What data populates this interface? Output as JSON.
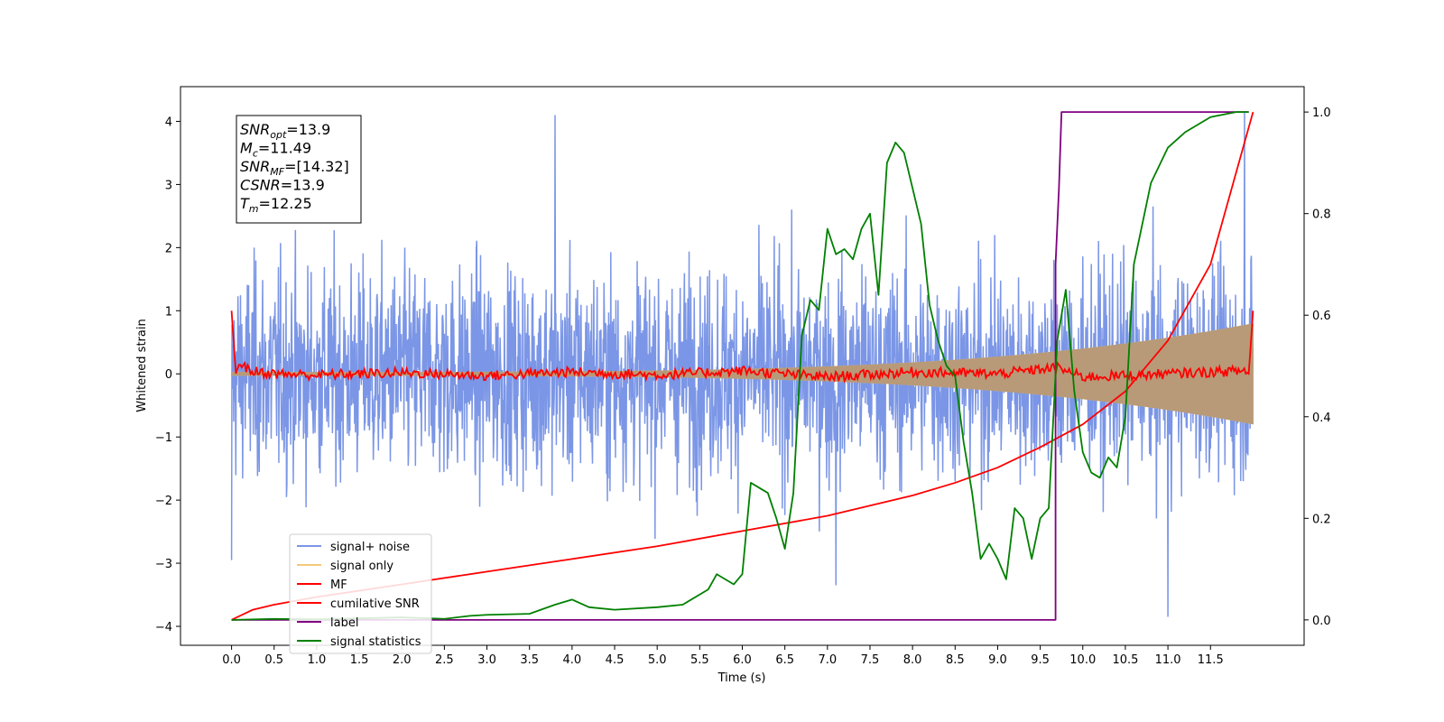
{
  "chart_data": {
    "type": "line",
    "title": "",
    "xlabel": "Time (s)",
    "ylabel": "Whitened strain",
    "xlim": [
      -0.6,
      12.6
    ],
    "ylim_left": [
      -4.3,
      4.55
    ],
    "ylim_right": [
      -0.05,
      1.05
    ],
    "x_ticks": [
      "0.0",
      "0.5",
      "1.0",
      "1.5",
      "2.0",
      "2.5",
      "3.0",
      "3.5",
      "4.0",
      "4.5",
      "5.0",
      "5.5",
      "6.0",
      "6.5",
      "7.0",
      "7.5",
      "8.0",
      "8.5",
      "9.0",
      "9.5",
      "10.0",
      "10.5",
      "11.0",
      "11.5"
    ],
    "y_ticks_left": [
      "4",
      "3",
      "2",
      "1",
      "0",
      "−1",
      "−2",
      "−3",
      "−4"
    ],
    "y_ticks_right": [
      "1.0",
      "0.8",
      "0.6",
      "0.4",
      "0.2",
      "0.0"
    ],
    "legend_position": "lower-left",
    "annotation": {
      "lines": [
        {
          "main": "SNR",
          "sub": "opt",
          "rest": "=13.9"
        },
        {
          "main": "M",
          "sub": "c",
          "rest": "=11.49"
        },
        {
          "main": "SNR",
          "sub": "MF",
          "rest": "=[14.32]"
        },
        {
          "main": "CSNR",
          "sub": "",
          "rest": "=13.9"
        },
        {
          "main": "T",
          "sub": "m",
          "rest": "=12.25"
        }
      ]
    },
    "series": [
      {
        "name": "signal+ noise",
        "color": "#7b96e6",
        "axis": "left",
        "kind": "noise-band",
        "x_range": [
          0.0,
          12.0
        ],
        "envelope": 1.1,
        "notable_peaks": [
          [
            0.0,
            -2.95
          ],
          [
            3.8,
            4.1
          ],
          [
            11.9,
            4.15
          ],
          [
            11.0,
            -3.85
          ],
          [
            7.1,
            -3.35
          ]
        ]
      },
      {
        "name": "signal only",
        "color": "#f5c97a",
        "axis": "left",
        "kind": "chirp",
        "x_range": [
          0.0,
          12.0
        ],
        "amplitude_start": 0.03,
        "amplitude_end": 0.8
      },
      {
        "name": "MF",
        "color": "#ff0000",
        "axis": "left",
        "x": [
          0.0,
          0.05,
          0.1,
          0.2,
          0.5,
          1.0,
          2.0,
          3.0,
          4.0,
          5.0,
          6.0,
          7.0,
          8.0,
          9.0,
          9.7,
          10.0,
          11.0,
          11.9,
          11.95,
          12.0
        ],
        "values": [
          1.0,
          0.0,
          0.2,
          0.05,
          0.0,
          -0.02,
          0.02,
          -0.03,
          0.03,
          -0.02,
          0.05,
          -0.05,
          0.03,
          0.0,
          0.1,
          -0.05,
          0.0,
          0.05,
          0.0,
          1.0
        ]
      },
      {
        "name": "cumilative SNR",
        "color": "#ff0000",
        "axis": "right",
        "x": [
          0.0,
          0.25,
          0.5,
          1.0,
          2.0,
          3.0,
          4.0,
          5.0,
          6.0,
          7.0,
          8.0,
          8.5,
          9.0,
          9.5,
          10.0,
          10.5,
          11.0,
          11.5,
          12.0
        ],
        "values": [
          0.0,
          0.02,
          0.03,
          0.045,
          0.07,
          0.095,
          0.12,
          0.145,
          0.175,
          0.205,
          0.245,
          0.27,
          0.3,
          0.34,
          0.385,
          0.45,
          0.55,
          0.7,
          1.0
        ]
      },
      {
        "name": "label",
        "color": "#800080",
        "axis": "right",
        "x": [
          0.0,
          9.68,
          9.68,
          9.72,
          9.75,
          11.95
        ],
        "values": [
          0.0,
          0.0,
          0.7,
          0.85,
          1.0,
          1.0
        ]
      },
      {
        "name": "signal statistics",
        "color": "#008000",
        "axis": "right",
        "x": [
          0.0,
          0.5,
          1.0,
          1.5,
          2.0,
          2.5,
          2.8,
          3.0,
          3.5,
          3.8,
          4.0,
          4.2,
          4.5,
          5.0,
          5.3,
          5.6,
          5.7,
          5.8,
          5.9,
          6.0,
          6.1,
          6.2,
          6.3,
          6.4,
          6.5,
          6.6,
          6.7,
          6.8,
          6.9,
          7.0,
          7.1,
          7.2,
          7.3,
          7.4,
          7.5,
          7.6,
          7.7,
          7.8,
          7.9,
          8.0,
          8.1,
          8.2,
          8.3,
          8.4,
          8.5,
          8.6,
          8.7,
          8.8,
          8.9,
          9.0,
          9.1,
          9.2,
          9.3,
          9.4,
          9.5,
          9.6,
          9.7,
          9.8,
          9.9,
          10.0,
          10.1,
          10.2,
          10.3,
          10.4,
          10.5,
          10.6,
          10.8,
          11.0,
          11.2,
          11.5,
          11.8,
          11.95
        ],
        "values": [
          0.0,
          0.002,
          0.001,
          0.003,
          0.005,
          0.002,
          0.008,
          0.01,
          0.012,
          0.03,
          0.04,
          0.025,
          0.02,
          0.025,
          0.03,
          0.06,
          0.09,
          0.08,
          0.07,
          0.09,
          0.27,
          0.26,
          0.25,
          0.2,
          0.14,
          0.25,
          0.56,
          0.63,
          0.61,
          0.77,
          0.72,
          0.73,
          0.71,
          0.77,
          0.8,
          0.64,
          0.9,
          0.94,
          0.92,
          0.85,
          0.78,
          0.62,
          0.55,
          0.5,
          0.48,
          0.35,
          0.25,
          0.12,
          0.15,
          0.12,
          0.08,
          0.22,
          0.2,
          0.12,
          0.2,
          0.22,
          0.55,
          0.65,
          0.45,
          0.33,
          0.29,
          0.28,
          0.32,
          0.3,
          0.4,
          0.7,
          0.86,
          0.93,
          0.96,
          0.99,
          1.0,
          1.0
        ]
      }
    ]
  }
}
